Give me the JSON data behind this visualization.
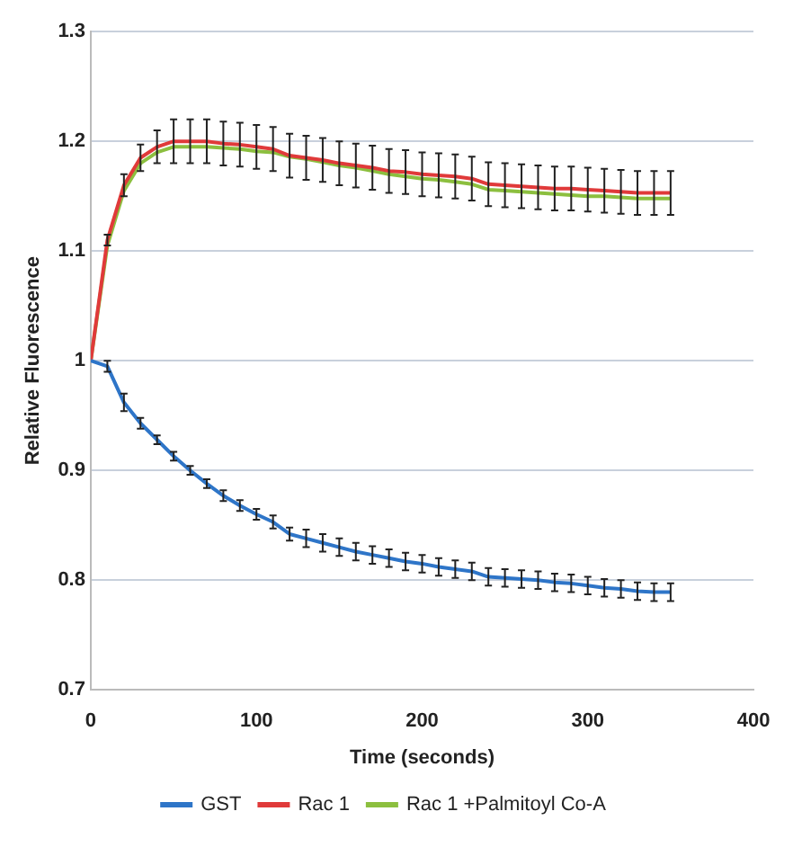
{
  "chart_data": {
    "type": "line",
    "xlabel": "Time (seconds)",
    "ylabel": "Relative Fluorescence",
    "x": [
      0,
      10,
      20,
      30,
      40,
      50,
      60,
      70,
      80,
      90,
      100,
      110,
      120,
      130,
      140,
      150,
      160,
      170,
      180,
      190,
      200,
      210,
      220,
      230,
      240,
      250,
      260,
      270,
      280,
      290,
      300,
      310,
      320,
      330,
      340,
      350
    ],
    "series": [
      {
        "name": "GST",
        "color": "#2e75c8",
        "values": [
          1.0,
          0.995,
          0.962,
          0.943,
          0.928,
          0.913,
          0.9,
          0.888,
          0.877,
          0.868,
          0.86,
          0.853,
          0.842,
          0.838,
          0.834,
          0.83,
          0.826,
          0.823,
          0.82,
          0.817,
          0.815,
          0.812,
          0.81,
          0.808,
          0.803,
          0.802,
          0.801,
          0.8,
          0.798,
          0.797,
          0.795,
          0.793,
          0.792,
          0.79,
          0.789,
          0.789
        ],
        "errors": [
          null,
          0.005,
          0.008,
          0.005,
          0.004,
          0.004,
          0.004,
          0.004,
          0.005,
          0.005,
          0.005,
          0.006,
          0.006,
          0.008,
          0.008,
          0.008,
          0.008,
          0.008,
          0.008,
          0.008,
          0.008,
          0.008,
          0.008,
          0.008,
          0.008,
          0.008,
          0.008,
          0.008,
          0.008,
          0.008,
          0.008,
          0.008,
          0.008,
          0.008,
          0.008,
          0.008
        ]
      },
      {
        "name": "Rac 1",
        "color": "#e03a3a",
        "values": [
          1.0,
          1.11,
          1.16,
          1.185,
          1.195,
          1.2,
          1.2,
          1.2,
          1.198,
          1.197,
          1.195,
          1.193,
          1.187,
          1.185,
          1.183,
          1.18,
          1.178,
          1.176,
          1.173,
          1.172,
          1.17,
          1.169,
          1.168,
          1.166,
          1.161,
          1.16,
          1.159,
          1.158,
          1.157,
          1.157,
          1.156,
          1.155,
          1.154,
          1.153,
          1.153,
          1.153
        ],
        "errors": [
          null,
          0.005,
          0.01,
          0.012,
          0.015,
          0.02,
          0.02,
          0.02,
          0.02,
          0.02,
          0.02,
          0.02,
          0.02,
          0.02,
          0.02,
          0.02,
          0.02,
          0.02,
          0.02,
          0.02,
          0.02,
          0.02,
          0.02,
          0.02,
          0.02,
          0.02,
          0.02,
          0.02,
          0.02,
          0.02,
          0.02,
          0.02,
          0.02,
          0.02,
          0.02,
          0.02
        ]
      },
      {
        "name": "Rac 1 +Palmitoyl Co-A",
        "color": "#8cbf3f",
        "values": [
          1.0,
          1.105,
          1.155,
          1.18,
          1.19,
          1.195,
          1.195,
          1.195,
          1.194,
          1.193,
          1.191,
          1.19,
          1.186,
          1.184,
          1.181,
          1.178,
          1.176,
          1.173,
          1.17,
          1.168,
          1.166,
          1.165,
          1.163,
          1.161,
          1.156,
          1.155,
          1.154,
          1.153,
          1.152,
          1.151,
          1.15,
          1.15,
          1.149,
          1.148,
          1.148,
          1.148
        ]
      }
    ],
    "xlim": [
      0,
      400
    ],
    "xticks": [
      0,
      100,
      200,
      300,
      400
    ],
    "ylim": [
      0.7,
      1.3
    ],
    "yticks": [
      0.7,
      0.8,
      0.9,
      1,
      1.1,
      1.2,
      1.3
    ],
    "grid": "y",
    "legend": "bottom",
    "marker": "none",
    "line_style": "solid"
  }
}
